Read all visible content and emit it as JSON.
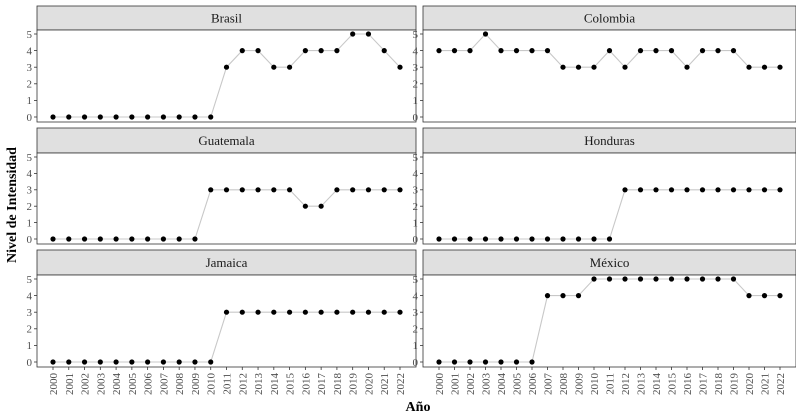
{
  "chart_data": {
    "type": "line",
    "xlabel": "Año",
    "ylabel": "Nivel de Intensidad",
    "ylim": [
      0,
      5
    ],
    "yticks": [
      "0",
      "1",
      "2",
      "3",
      "4",
      "5"
    ],
    "x": [
      "2000",
      "2001",
      "2002",
      "2003",
      "2004",
      "2005",
      "2006",
      "2007",
      "2008",
      "2009",
      "2010",
      "2011",
      "2012",
      "2013",
      "2014",
      "2015",
      "2016",
      "2017",
      "2018",
      "2019",
      "2020",
      "2021",
      "2022"
    ],
    "grid": false,
    "facets": [
      {
        "name": "Brasil",
        "values": [
          0,
          0,
          0,
          0,
          0,
          0,
          0,
          0,
          0,
          0,
          0,
          3,
          4,
          4,
          3,
          3,
          4,
          4,
          4,
          5,
          5,
          4,
          3
        ]
      },
      {
        "name": "Colombia",
        "values": [
          4,
          4,
          4,
          5,
          4,
          4,
          4,
          4,
          3,
          3,
          3,
          4,
          3,
          4,
          4,
          4,
          3,
          4,
          4,
          4,
          3,
          3,
          3
        ]
      },
      {
        "name": "Guatemala",
        "values": [
          0,
          0,
          0,
          0,
          0,
          0,
          0,
          0,
          0,
          0,
          3,
          3,
          3,
          3,
          3,
          3,
          2,
          2,
          3,
          3,
          3,
          3,
          3
        ]
      },
      {
        "name": "Honduras",
        "values": [
          0,
          0,
          0,
          0,
          0,
          0,
          0,
          0,
          0,
          0,
          0,
          0,
          3,
          3,
          3,
          3,
          3,
          3,
          3,
          3,
          3,
          3,
          3
        ]
      },
      {
        "name": "Jamaica",
        "values": [
          0,
          0,
          0,
          0,
          0,
          0,
          0,
          0,
          0,
          0,
          0,
          3,
          3,
          3,
          3,
          3,
          3,
          3,
          3,
          3,
          3,
          3,
          3
        ]
      },
      {
        "name": "México",
        "values": [
          0,
          0,
          0,
          0,
          0,
          0,
          0,
          4,
          4,
          4,
          5,
          5,
          5,
          5,
          5,
          5,
          5,
          5,
          5,
          5,
          4,
          4,
          4
        ]
      }
    ]
  }
}
